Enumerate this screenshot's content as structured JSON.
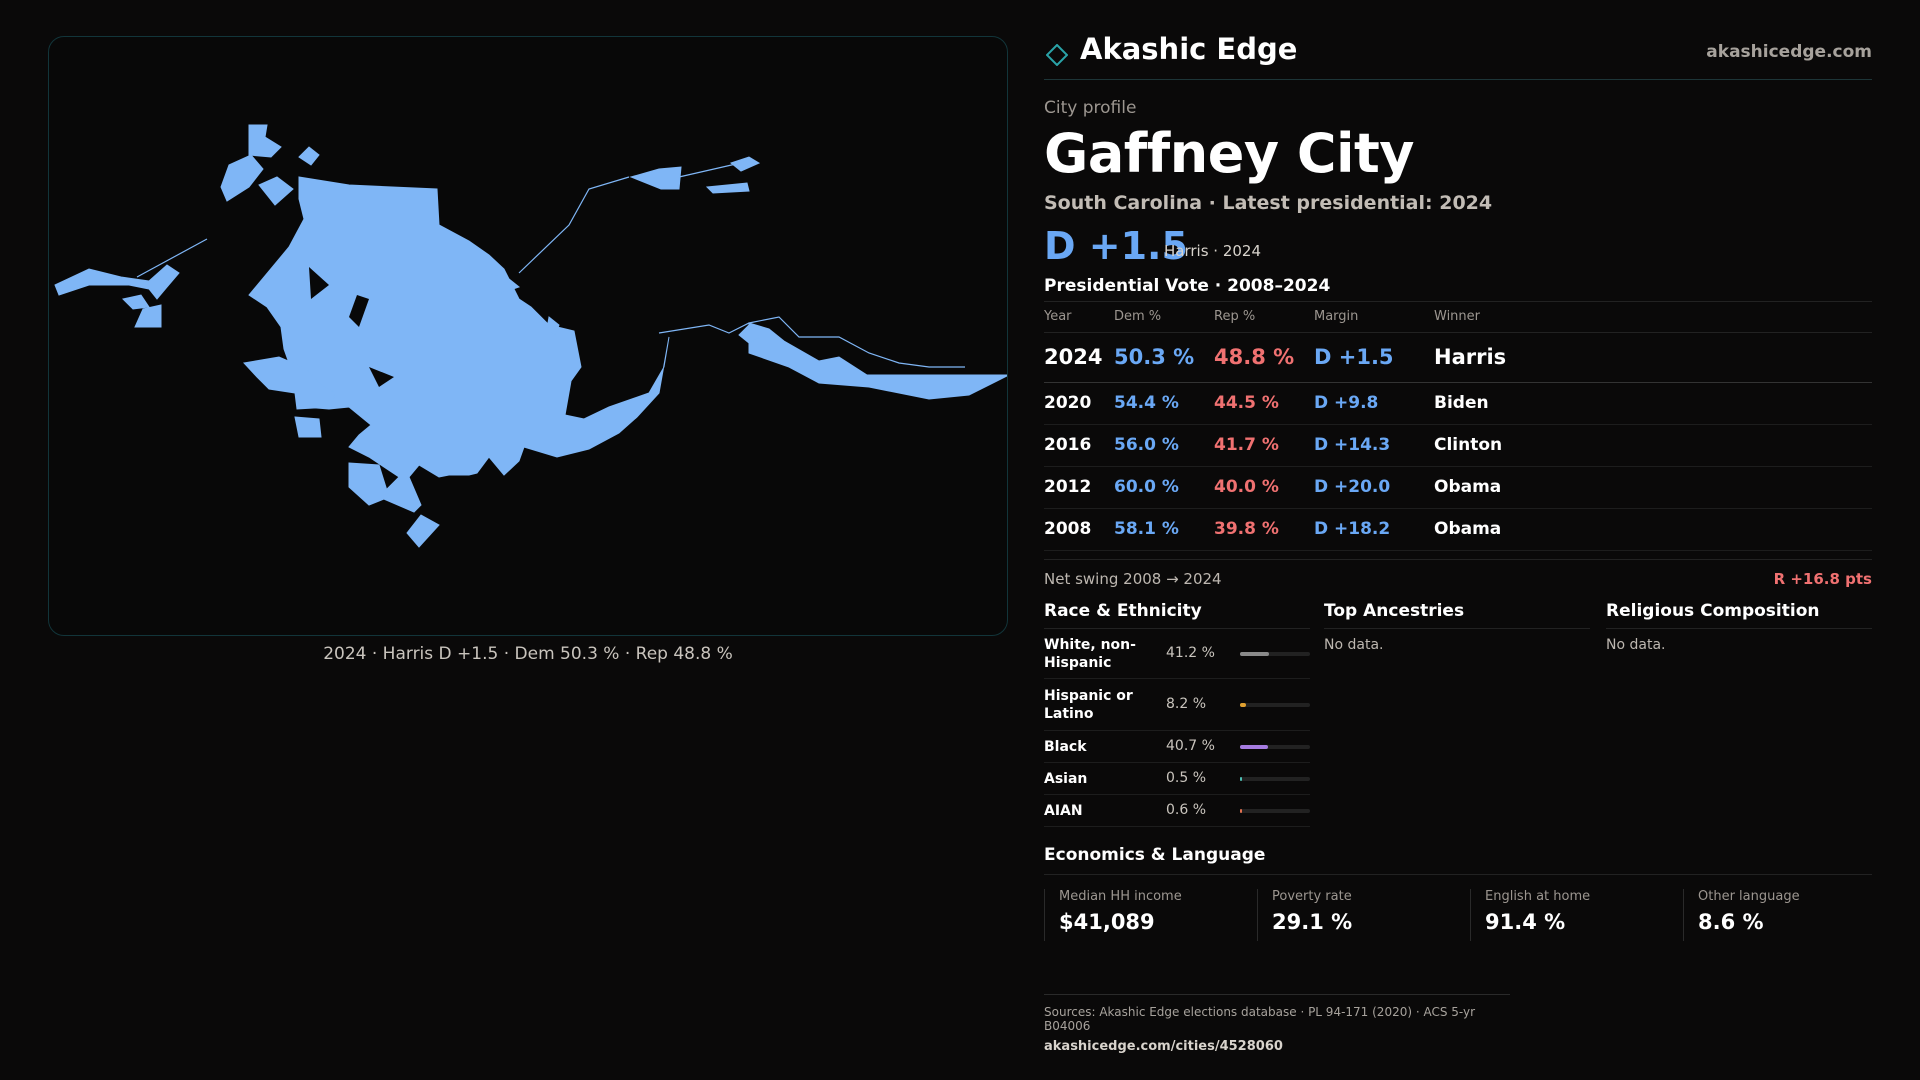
{
  "brand": {
    "name": "Akashic Edge",
    "url": "akashicedge.com"
  },
  "map": {
    "fill_color": "#7fb6f6",
    "caption": "2024 · Harris D +1.5 · Dem 50.3 % · Rep 48.8 %"
  },
  "profile": {
    "eyebrow": "City profile",
    "title": "Gaffney City",
    "subtitle": "South Carolina · Latest presidential: 2024",
    "margin": "D +1.5",
    "margin_sub": "Harris · 2024"
  },
  "presidential": {
    "title": "Presidential Vote · 2008–2024",
    "headers": {
      "year": "Year",
      "dem": "Dem %",
      "rep": "Rep %",
      "margin": "Margin",
      "winner": "Winner"
    },
    "rows": [
      {
        "year": "2024",
        "dem": "50.3 %",
        "rep": "48.8 %",
        "margin": "D +1.5",
        "winner": "Harris"
      },
      {
        "year": "2020",
        "dem": "54.4 %",
        "rep": "44.5 %",
        "margin": "D +9.8",
        "winner": "Biden"
      },
      {
        "year": "2016",
        "dem": "56.0 %",
        "rep": "41.7 %",
        "margin": "D +14.3",
        "winner": "Clinton"
      },
      {
        "year": "2012",
        "dem": "60.0 %",
        "rep": "40.0 %",
        "margin": "D +20.0",
        "winner": "Obama"
      },
      {
        "year": "2008",
        "dem": "58.1 %",
        "rep": "39.8 %",
        "margin": "D +18.2",
        "winner": "Obama"
      }
    ],
    "swing_label": "Net swing 2008 → 2024",
    "swing_value": "R +16.8 pts"
  },
  "race": {
    "title": "Race & Ethnicity",
    "rows": [
      {
        "name": "White, non-Hispanic",
        "pct": "41.2 %",
        "value": 41.2,
        "color": "#8a8a8a"
      },
      {
        "name": "Hispanic or Latino",
        "pct": "8.2 %",
        "value": 8.2,
        "color": "#e0a030"
      },
      {
        "name": "Black",
        "pct": "40.7 %",
        "value": 40.7,
        "color": "#a57be0"
      },
      {
        "name": "Asian",
        "pct": "0.5 %",
        "value": 0.5,
        "color": "#4dc0b5"
      },
      {
        "name": "AIAN",
        "pct": "0.6 %",
        "value": 0.6,
        "color": "#e07050"
      }
    ]
  },
  "ancestries": {
    "title": "Top Ancestries",
    "empty": "No data."
  },
  "religion": {
    "title": "Religious Composition",
    "empty": "No data."
  },
  "economics": {
    "title": "Economics & Language",
    "items": [
      {
        "label": "Median HH income",
        "value": "$41,089"
      },
      {
        "label": "Poverty rate",
        "value": "29.1 %"
      },
      {
        "label": "English at home",
        "value": "91.4 %"
      },
      {
        "label": "Other language",
        "value": "8.6 %"
      }
    ]
  },
  "footer": {
    "sources": "Sources: Akashic Edge elections database · PL 94-171 (2020) · ACS 5-yr B04006",
    "url": "akashicedge.com/cities/4528060"
  }
}
